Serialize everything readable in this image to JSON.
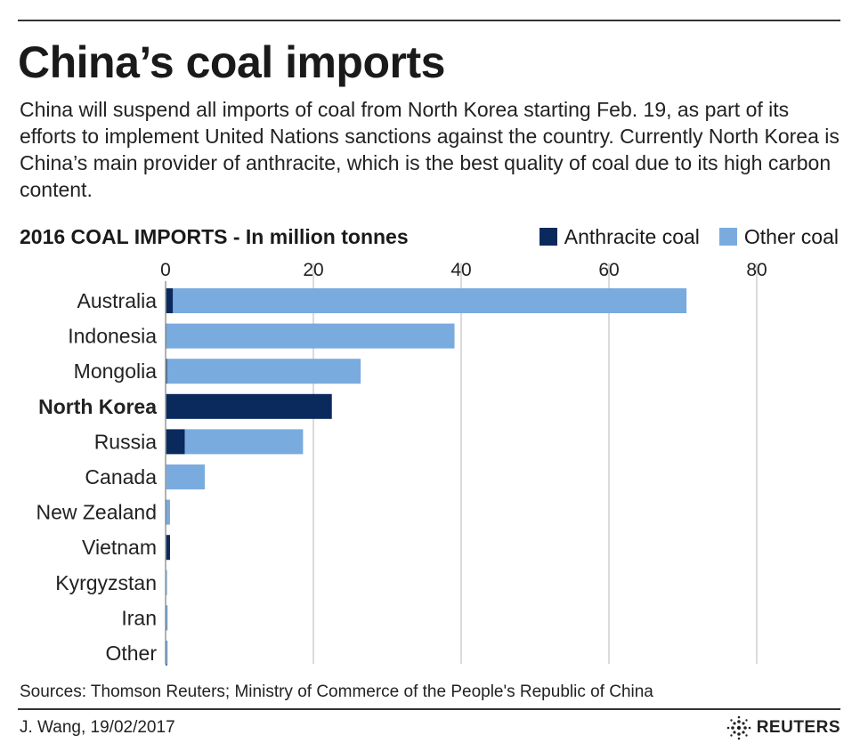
{
  "title": "China’s coal imports",
  "description": "China will suspend all imports of coal from North Korea starting Feb. 19, as part of its efforts to implement United Nations sanctions against the country. Currently North Korea is China’s main provider of anthracite, which is the best quality of coal due to its high carbon content.",
  "colors": {
    "anthracite": "#0a2a5e",
    "other": "#7aabde",
    "grid": "#cfcfcf"
  },
  "chart_data": {
    "type": "bar",
    "orientation": "horizontal",
    "stacked": true,
    "title": "2016 COAL IMPORTS - In million tonnes",
    "xlim": [
      0,
      80
    ],
    "xticks": [
      0,
      20,
      40,
      60,
      80
    ],
    "categories": [
      "Australia",
      "Indonesia",
      "Mongolia",
      "North Korea",
      "Russia",
      "Canada",
      "New Zealand",
      "Vietnam",
      "Kyrgyzstan",
      "Iran",
      "Other"
    ],
    "highlight": "North Korea",
    "series": [
      {
        "name": "Anthracite coal",
        "values": [
          1.0,
          0.1,
          0.2,
          22.5,
          2.6,
          0.0,
          0.1,
          0.6,
          0.0,
          0.1,
          0.1
        ]
      },
      {
        "name": "Other coal",
        "values": [
          69.5,
          39.0,
          26.2,
          0.0,
          16.0,
          5.3,
          0.5,
          0.0,
          0.2,
          0.1,
          0.1
        ]
      }
    ],
    "legend_position": "top-right",
    "grid": true
  },
  "footer": {
    "sources": "Sources: Thomson Reuters; Ministry of Commerce of the People's Republic of China",
    "credit": "J. Wang,  19/02/2017",
    "brand": "REUTERS"
  }
}
